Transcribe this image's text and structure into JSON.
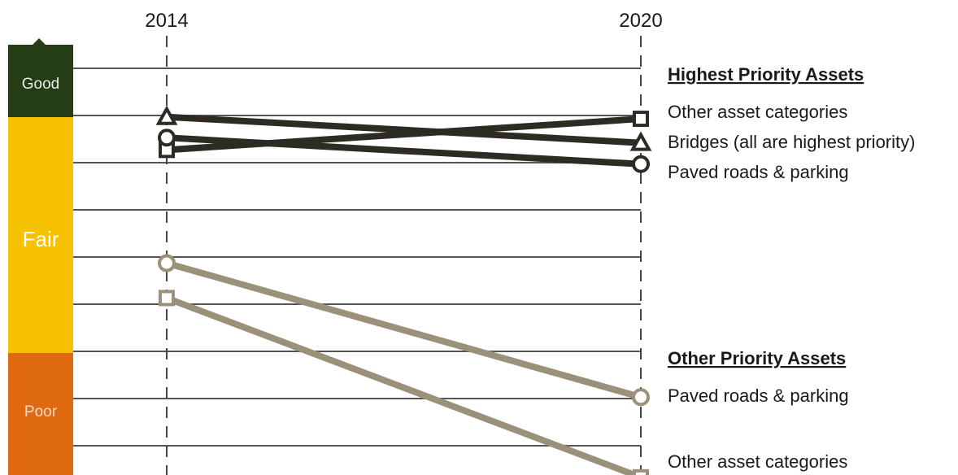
{
  "chart_data": {
    "type": "line",
    "x": [
      "2014",
      "2020"
    ],
    "condition_bands": [
      {
        "label": "Good",
        "color": "#243d14"
      },
      {
        "label": "Fair",
        "color": "#f6c100"
      },
      {
        "label": "Poor",
        "color": "#e06a12"
      }
    ],
    "groups": [
      {
        "heading": "Highest Priority Assets",
        "color": "#2e2b24",
        "series": [
          {
            "name": "Other asset categories",
            "marker": "square",
            "values": [
              1.73,
              1.07
            ]
          },
          {
            "name": "Bridges (all are highest priority)",
            "marker": "triangle",
            "values": [
              1.03,
              1.58
            ]
          },
          {
            "name": "Paved roads & parking",
            "marker": "circle",
            "values": [
              1.47,
              2.03
            ]
          }
        ]
      },
      {
        "heading": "Other Priority Assets",
        "color": "#9b9079",
        "series": [
          {
            "name": "Paved roads & parking",
            "marker": "circle",
            "values": [
              4.13,
              6.97
            ]
          },
          {
            "name": "Other asset categories",
            "marker": "square",
            "values": [
              4.87,
              8.67
            ]
          }
        ]
      }
    ]
  }
}
